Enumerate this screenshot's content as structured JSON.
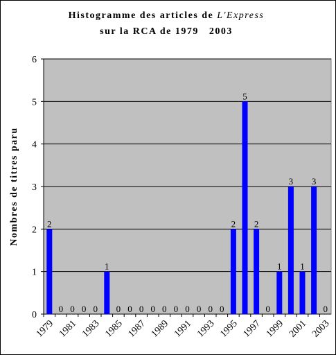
{
  "chart_data": {
    "type": "bar",
    "title": [
      "Histogramme des articles de ",
      "L'Express",
      "sur la RCA de 1979   2003"
    ],
    "y_label": "Nombres de titres paru",
    "categories": [
      "1979",
      null,
      "1981",
      null,
      "1983",
      null,
      "1985",
      null,
      "1987",
      null,
      "1989",
      null,
      "1991",
      null,
      "1993",
      null,
      "1995",
      null,
      "1997",
      null,
      "1999",
      null,
      "2001",
      null,
      "2003"
    ],
    "values": [
      2,
      0,
      0,
      0,
      0,
      1,
      0,
      0,
      0,
      0,
      0,
      0,
      0,
      0,
      0,
      0,
      2,
      5,
      2,
      0,
      1,
      3,
      1,
      3,
      0
    ],
    "color": "#0000ff",
    "background": "#c0c0c0",
    "ylim": [
      0,
      6
    ],
    "yticks": [
      0,
      1,
      2,
      3,
      4,
      5,
      6
    ],
    "grid": true
  }
}
